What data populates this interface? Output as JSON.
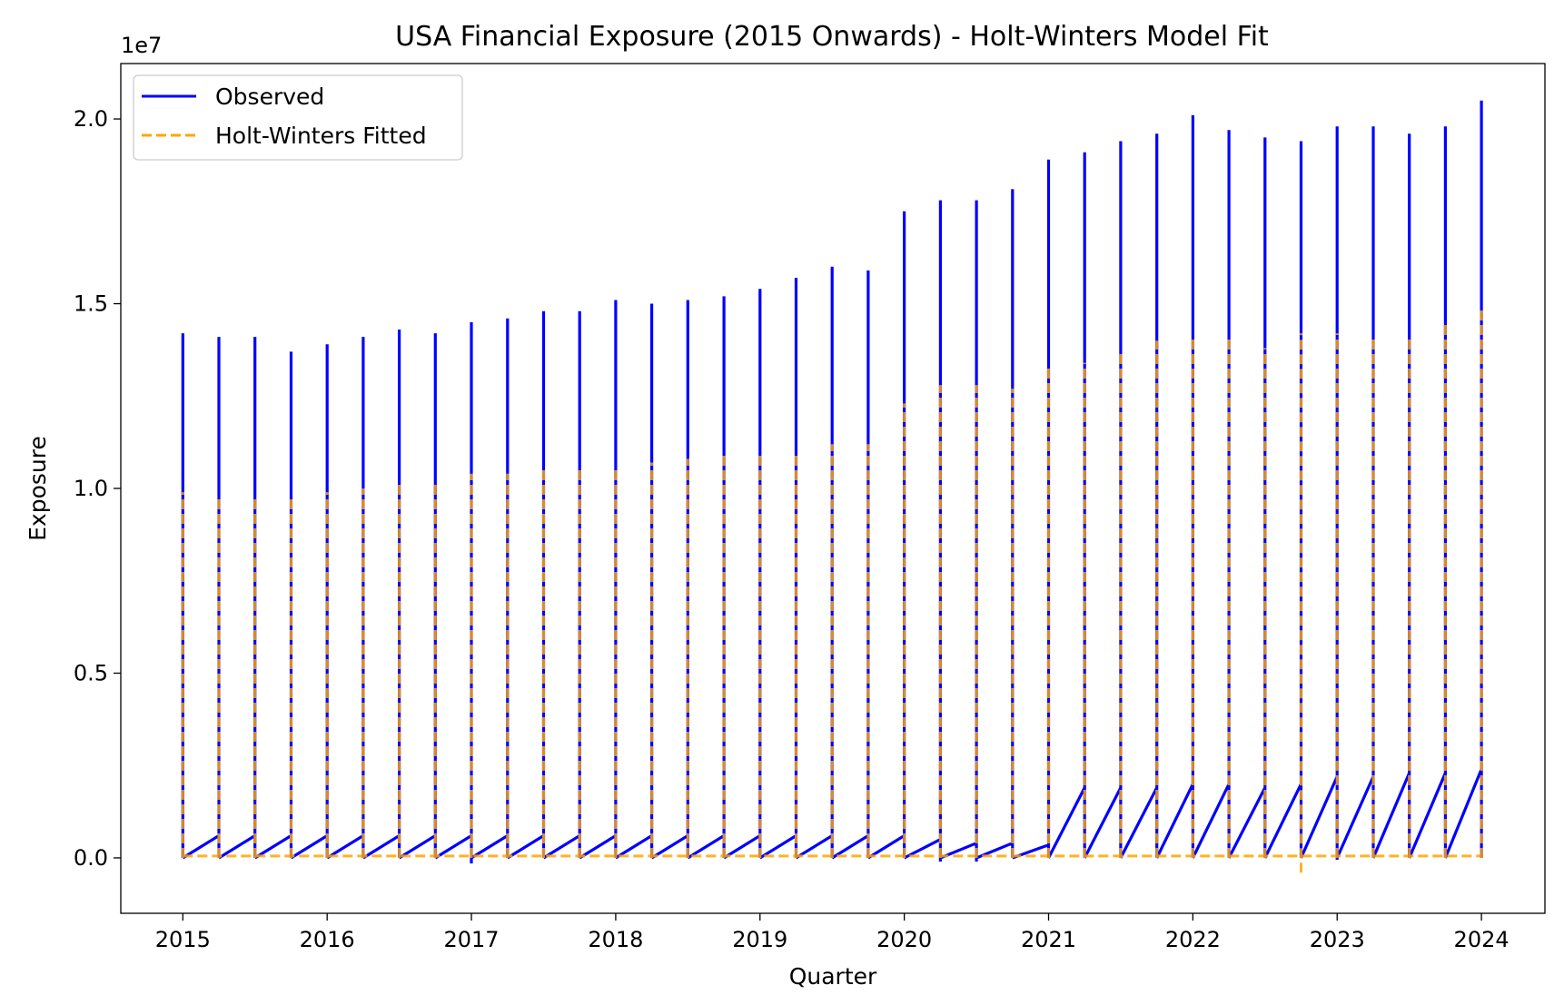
{
  "chart_data": {
    "type": "line",
    "title": "USA Financial Exposure (2015 Onwards) - Holt-Winters Model Fit",
    "xlabel": "Quarter",
    "ylabel": "Exposure",
    "y_scale_label": "1e7",
    "xlim": [
      2014.57,
      2024.44
    ],
    "ylim": [
      -1500000,
      21500000
    ],
    "x_ticks": [
      2015,
      2016,
      2017,
      2018,
      2019,
      2020,
      2021,
      2022,
      2023,
      2024
    ],
    "x_tick_labels": [
      "2015",
      "2016",
      "2017",
      "2018",
      "2019",
      "2020",
      "2021",
      "2022",
      "2023",
      "2024"
    ],
    "y_ticks": [
      0,
      5000000,
      10000000,
      15000000,
      20000000
    ],
    "y_tick_labels": [
      "0.0",
      "0.5",
      "1.0",
      "1.5",
      "2.0"
    ],
    "grid": false,
    "legend_position": "upper-left",
    "quarters": [
      "2015",
      "2015.25",
      "2015.5",
      "2015.75",
      "2016",
      "2016.25",
      "2016.5",
      "2016.75",
      "2017",
      "2017.25",
      "2017.5",
      "2017.75",
      "2018",
      "2018.25",
      "2018.5",
      "2018.75",
      "2019",
      "2019.25",
      "2019.5",
      "2019.75",
      "2020",
      "2020.25",
      "2020.5",
      "2020.75",
      "2021",
      "2021.25",
      "2021.5",
      "2021.75",
      "2022",
      "2022.25",
      "2022.5",
      "2022.75",
      "2023",
      "2023.25",
      "2023.5",
      "2023.75",
      "2024"
    ],
    "series": [
      {
        "name": "Observed",
        "color": "#0000ff",
        "style": "solid",
        "quarter_peak": [
          14200000,
          14100000,
          14100000,
          13700000,
          13900000,
          14100000,
          14300000,
          14200000,
          14500000,
          14600000,
          14800000,
          14800000,
          15100000,
          15000000,
          15100000,
          15200000,
          15400000,
          15700000,
          16000000,
          15900000,
          17500000,
          17800000,
          17800000,
          18100000,
          18900000,
          19100000,
          19400000,
          19600000,
          20100000,
          19700000,
          19500000,
          19400000,
          19800000,
          19800000,
          19600000,
          19800000,
          20500000
        ],
        "quarter_end_ramp": [
          600000,
          600000,
          600000,
          600000,
          600000,
          600000,
          600000,
          600000,
          600000,
          600000,
          600000,
          600000,
          600000,
          600000,
          600000,
          600000,
          600000,
          600000,
          600000,
          600000,
          500000,
          400000,
          400000,
          350000,
          1900000,
          1900000,
          1900000,
          2000000,
          2000000,
          1900000,
          2000000,
          2200000,
          2200000,
          2300000,
          2300000,
          2400000
        ],
        "quarter_min": [
          0,
          0,
          0,
          0,
          0,
          0,
          0,
          0,
          -150000,
          0,
          0,
          0,
          0,
          0,
          0,
          0,
          0,
          0,
          0,
          0,
          0,
          -100000,
          -100000,
          0,
          0,
          0,
          0,
          0,
          0,
          0,
          0,
          0,
          -50000,
          0,
          0,
          0,
          0
        ]
      },
      {
        "name": "Holt-Winters Fitted",
        "color": "#ffa500",
        "style": "dashed",
        "quarter_peak": [
          9900000,
          9800000,
          9800000,
          9800000,
          9900000,
          10000000,
          10100000,
          10200000,
          10400000,
          10400000,
          10500000,
          10600000,
          10600000,
          10700000,
          10800000,
          10900000,
          10900000,
          11000000,
          11200000,
          11200000,
          12300000,
          12800000,
          12800000,
          12700000,
          13300000,
          13400000,
          13700000,
          14000000,
          14100000,
          14100000,
          13800000,
          14200000,
          14200000,
          14100000,
          14100000,
          14500000,
          14900000
        ],
        "baseline": 50000,
        "quarter_min": [
          0,
          0,
          0,
          0,
          0,
          0,
          0,
          0,
          0,
          0,
          0,
          0,
          0,
          0,
          0,
          0,
          0,
          0,
          0,
          0,
          0,
          0,
          0,
          0,
          0,
          0,
          0,
          0,
          0,
          0,
          0,
          -400000,
          0,
          0,
          0,
          0,
          0
        ]
      }
    ]
  }
}
